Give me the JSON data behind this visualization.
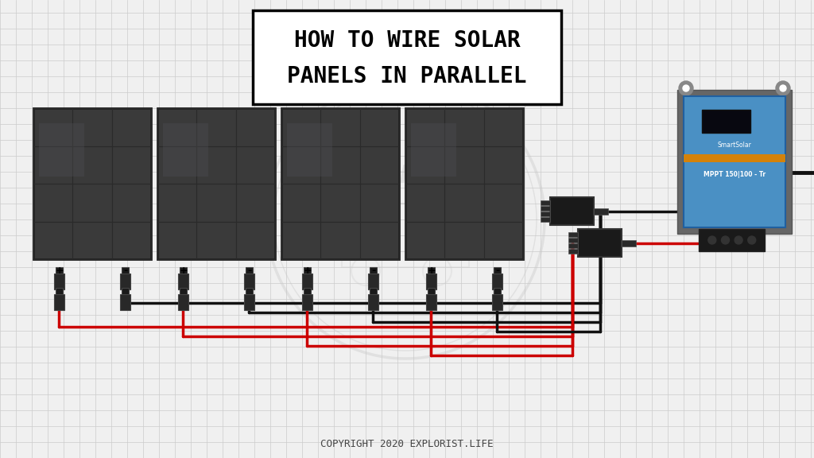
{
  "title_line1": "HOW TO WIRE SOLAR",
  "title_line2": "PANELS IN PARALLEL",
  "copyright": "COPYRIGHT 2020 EXPLORIST.LIFE",
  "bg_color": "#f0f0f0",
  "grid_color": "#cccccc",
  "panel_color_dark": "#3a3a3a",
  "panel_grid_color": "#2a2a2a",
  "connector_color": "#1a1a1a",
  "wire_red": "#cc0000",
  "wire_black": "#111111",
  "charge_controller_blue": "#4a90c4",
  "charge_controller_dark": "#2a5a8a",
  "n_panels": 4,
  "watermark_color": "#c8c8c8",
  "watermark_alpha": 0.4
}
